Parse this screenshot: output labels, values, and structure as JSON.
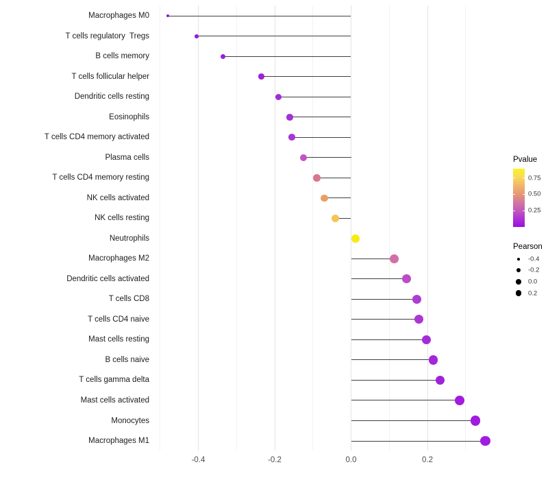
{
  "figure": {
    "background": "#ffffff"
  },
  "chart_data": {
    "type": "lollipop",
    "title": "",
    "xlabel": "",
    "ylabel": "",
    "orientation": "horizontal",
    "baseline": 0.0,
    "xlim": [
      -0.5,
      0.38
    ],
    "x_ticks": [
      "-0.4",
      "-0.2",
      "0.0",
      "0.2"
    ],
    "x_tick_values": [
      -0.4,
      -0.2,
      0.0,
      0.2
    ],
    "grid": "vertical major and minor gridlines only, light gray, no panel border",
    "legend_position": "right",
    "categories": [
      "Macrophages M0",
      "T cells regulatory  Tregs",
      "B cells memory",
      "T cells follicular helper",
      "Dendritic cells resting",
      "Eosinophils",
      "T cells CD4 memory activated",
      "Plasma cells",
      "T cells CD4 memory resting",
      "NK cells activated",
      "NK cells resting",
      "Neutrophils",
      "Macrophages M2",
      "Dendritic cells activated",
      "T cells CD8",
      "T cells CD4 naive",
      "Mast cells resting",
      "B cells naive",
      "T cells gamma delta",
      "Mast cells activated",
      "Monocytes",
      "Macrophages M1"
    ],
    "series": [
      {
        "name": "Pearson",
        "values": [
          -0.48,
          -0.405,
          -0.335,
          -0.235,
          -0.19,
          -0.16,
          -0.155,
          -0.125,
          -0.09,
          -0.07,
          -0.042,
          0.012,
          0.113,
          0.146,
          0.172,
          0.178,
          0.197,
          0.215,
          0.233,
          0.285,
          0.326,
          0.352
        ]
      }
    ],
    "pvalues_estimated": [
      0.02,
      0.04,
      0.07,
      0.09,
      0.12,
      0.14,
      0.17,
      0.3,
      0.48,
      0.6,
      0.72,
      0.9,
      0.42,
      0.32,
      0.24,
      0.22,
      0.16,
      0.14,
      0.11,
      0.05,
      0.04,
      0.03
    ],
    "point_colors": [
      "#8A16DE",
      "#9119DD",
      "#9A1EDB",
      "#9C22DA",
      "#A02BD9",
      "#A32FD8",
      "#A836D5",
      "#C353C4",
      "#D8758F",
      "#EB9D63",
      "#F4C653",
      "#F8EB15",
      "#D26FA9",
      "#BC4BC8",
      "#AE3BD2",
      "#AB36D4",
      "#A42CD7",
      "#A326D9",
      "#A122DA",
      "#A21BDE",
      "#A01BDF",
      "#A01CE0"
    ],
    "stem_color": "#3f3f3f"
  },
  "legend_pvalue": {
    "title": "Pvalue",
    "ticks": [
      "0.75",
      "0.50",
      "0.25"
    ],
    "tick_values": [
      0.75,
      0.5,
      0.25
    ],
    "bar_range": [
      0.0,
      0.88
    ],
    "gradient_top_color": "#fbf227",
    "gradient_bottom_color": "#9b0fe0"
  },
  "legend_pearson": {
    "title": "Pearson",
    "items": [
      {
        "label": "-0.4",
        "value": -0.4
      },
      {
        "label": "-0.2",
        "value": -0.2
      },
      {
        "label": "0.0",
        "value": 0.0
      },
      {
        "label": "0.2",
        "value": 0.2
      }
    ],
    "dot_color": "#000000"
  }
}
